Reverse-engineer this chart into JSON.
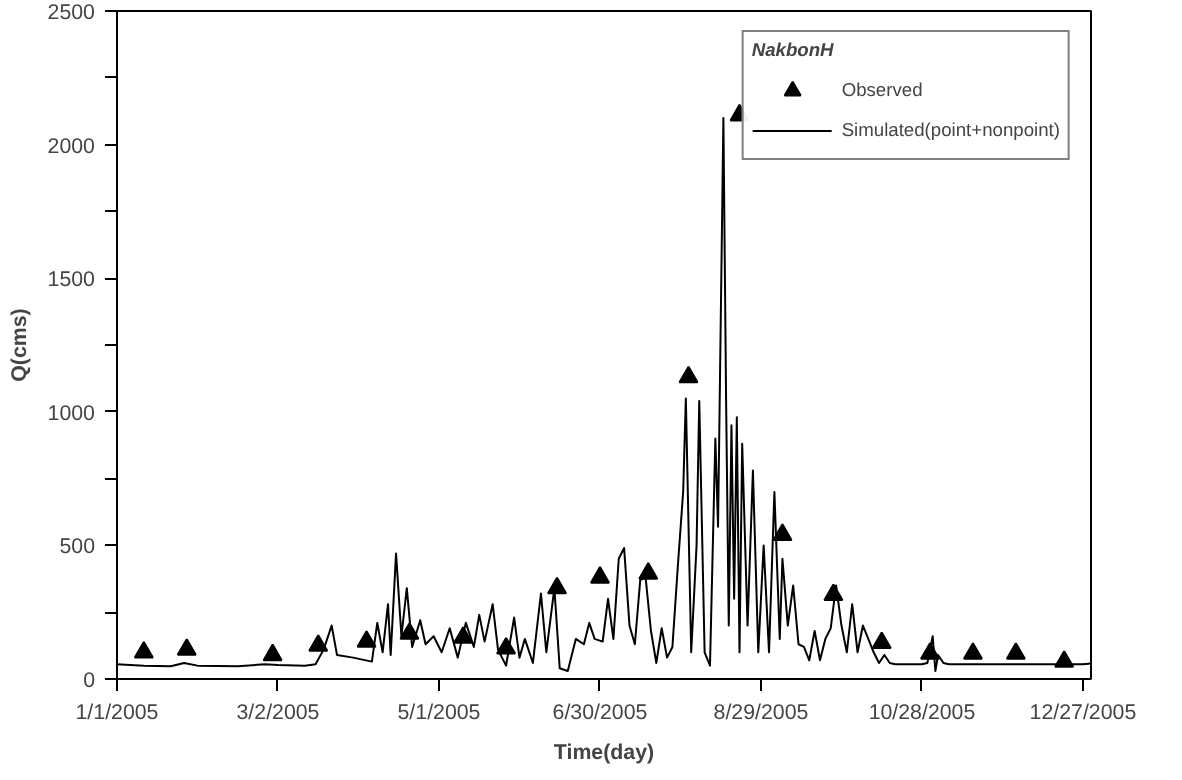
{
  "chart_data": {
    "type": "line",
    "xlabel": "Time(day)",
    "ylabel": "Q(cms)",
    "legend_title": "NakbonH",
    "legend": "top right",
    "grid": false,
    "xlim": [
      "2005-01-01",
      "2005-12-30"
    ],
    "xticks": [
      {
        "value": "2005-01-01",
        "label": "1/1/2005"
      },
      {
        "value": "2005-03-02",
        "label": "3/2/2005"
      },
      {
        "value": "2005-05-01",
        "label": "5/1/2005"
      },
      {
        "value": "2005-06-30",
        "label": "6/30/2005"
      },
      {
        "value": "2005-08-29",
        "label": "8/29/2005"
      },
      {
        "value": "2005-10-28",
        "label": "10/28/2005"
      },
      {
        "value": "2005-12-27",
        "label": "12/27/2005"
      }
    ],
    "ylim": [
      0,
      2500
    ],
    "yticks": [
      0,
      {
        "value": 250,
        "label": null
      },
      500,
      {
        "value": 750,
        "label": null
      },
      1000,
      {
        "value": 1250,
        "label": null
      },
      1500,
      {
        "value": 1750,
        "label": null
      },
      2000,
      {
        "value": 2250,
        "label": null
      },
      2500
    ],
    "series": [
      {
        "name": "Observed",
        "type": "scatter",
        "marker": "triangle",
        "color": "#000000",
        "x": [
          "2005-01-11",
          "2005-01-27",
          "2005-02-28",
          "2005-03-17",
          "2005-04-04",
          "2005-04-20",
          "2005-05-10",
          "2005-05-26",
          "2005-06-14",
          "2005-06-30",
          "2005-07-18",
          "2005-08-02",
          "2005-08-21",
          "2005-09-06",
          "2005-09-25",
          "2005-10-13",
          "2005-10-31",
          "2005-11-16",
          "2005-12-02",
          "2005-12-20"
        ],
        "values": [
          100,
          110,
          90,
          125,
          140,
          170,
          155,
          115,
          340,
          380,
          395,
          1130,
          2110,
          540,
          315,
          135,
          95,
          95,
          95,
          65
        ]
      },
      {
        "name": "Simulated(point+nonpoint)",
        "line_style": "solid",
        "color": "#000000",
        "x": [
          "2005-01-01",
          "2005-01-11",
          "2005-01-21",
          "2005-01-26",
          "2005-01-31",
          "2005-02-15",
          "2005-02-25",
          "2005-03-02",
          "2005-03-12",
          "2005-03-16",
          "2005-03-19",
          "2005-03-22",
          "2005-03-24",
          "2005-03-30",
          "2005-04-06",
          "2005-04-08",
          "2005-04-10",
          "2005-04-12",
          "2005-04-13",
          "2005-04-15",
          "2005-04-17",
          "2005-04-19",
          "2005-04-21",
          "2005-04-24",
          "2005-04-26",
          "2005-04-29",
          "2005-05-02",
          "2005-05-05",
          "2005-05-08",
          "2005-05-11",
          "2005-05-14",
          "2005-05-16",
          "2005-05-18",
          "2005-05-21",
          "2005-05-23",
          "2005-05-26",
          "2005-05-29",
          "2005-05-31",
          "2005-06-02",
          "2005-06-05",
          "2005-06-08",
          "2005-06-10",
          "2005-06-13",
          "2005-06-15",
          "2005-06-18",
          "2005-06-21",
          "2005-06-24",
          "2005-06-26",
          "2005-06-28",
          "2005-07-01",
          "2005-07-03",
          "2005-07-05",
          "2005-07-07",
          "2005-07-09",
          "2005-07-11",
          "2005-07-13",
          "2005-07-15",
          "2005-07-17",
          "2005-07-19",
          "2005-07-21",
          "2005-07-23",
          "2005-07-25",
          "2005-07-27",
          "2005-07-29",
          "2005-07-31",
          "2005-08-01",
          "2005-08-03",
          "2005-08-05",
          "2005-08-06",
          "2005-08-08",
          "2005-08-10",
          "2005-08-12",
          "2005-08-13",
          "2005-08-15",
          "2005-08-16",
          "2005-08-17",
          "2005-08-18",
          "2005-08-19",
          "2005-08-20",
          "2005-08-21",
          "2005-08-22",
          "2005-08-24",
          "2005-08-26",
          "2005-08-28",
          "2005-08-30",
          "2005-09-01",
          "2005-09-03",
          "2005-09-05",
          "2005-09-06",
          "2005-09-08",
          "2005-09-10",
          "2005-09-12",
          "2005-09-14",
          "2005-09-16",
          "2005-09-18",
          "2005-09-20",
          "2005-09-22",
          "2005-09-24",
          "2005-09-26",
          "2005-09-28",
          "2005-09-30",
          "2005-10-02",
          "2005-10-04",
          "2005-10-06",
          "2005-10-08",
          "2005-10-10",
          "2005-10-12",
          "2005-10-14",
          "2005-10-16",
          "2005-10-18",
          "2005-10-23",
          "2005-10-28",
          "2005-10-30",
          "2005-11-01",
          "2005-11-02",
          "2005-11-03",
          "2005-11-05",
          "2005-11-07",
          "2005-11-12",
          "2005-11-17",
          "2005-11-27",
          "2005-12-07",
          "2005-12-17",
          "2005-12-27",
          "2005-12-30"
        ],
        "values": [
          55,
          50,
          48,
          60,
          50,
          48,
          55,
          52,
          50,
          55,
          110,
          200,
          90,
          80,
          65,
          210,
          100,
          280,
          90,
          470,
          160,
          340,
          120,
          220,
          130,
          160,
          100,
          190,
          80,
          210,
          120,
          240,
          140,
          280,
          110,
          50,
          230,
          80,
          150,
          60,
          320,
          100,
          340,
          40,
          30,
          150,
          130,
          210,
          150,
          140,
          300,
          150,
          450,
          490,
          200,
          130,
          370,
          380,
          180,
          60,
          190,
          80,
          120,
          420,
          700,
          1050,
          100,
          500,
          1040,
          100,
          50,
          900,
          570,
          2100,
          1050,
          200,
          950,
          300,
          980,
          100,
          880,
          200,
          780,
          100,
          500,
          100,
          700,
          150,
          450,
          200,
          350,
          130,
          120,
          70,
          180,
          70,
          150,
          190,
          350,
          200,
          100,
          280,
          100,
          200,
          150,
          100,
          60,
          90,
          60,
          55,
          55,
          55,
          60,
          160,
          30,
          90,
          60,
          55,
          55,
          55,
          55,
          55,
          55,
          55,
          58
        ]
      }
    ]
  }
}
